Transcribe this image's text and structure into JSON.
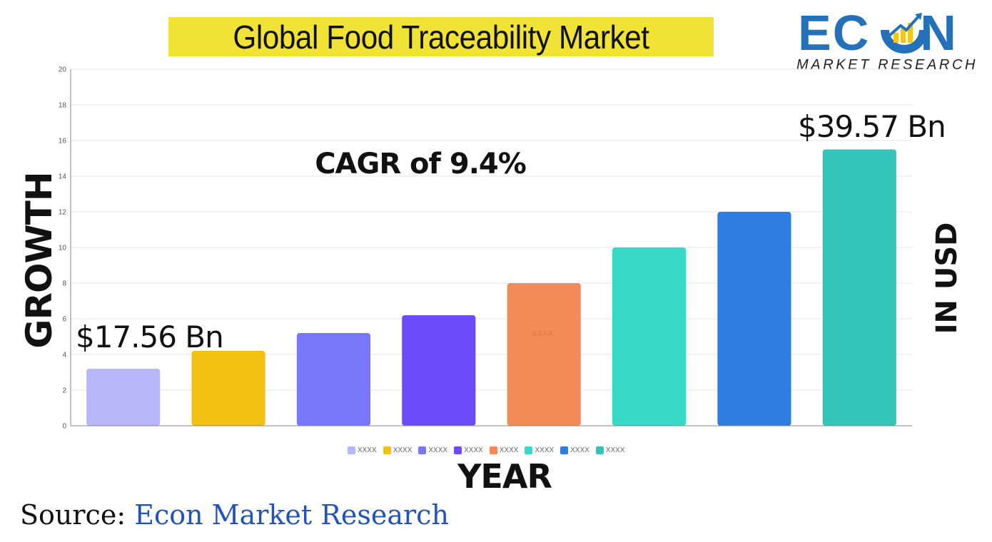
{
  "title": "Global Food Traceability Market",
  "logo": {
    "word_left": "EC",
    "word_right": "N",
    "subtitle": "MARKET RESEARCH",
    "brand_color": "#2471b9",
    "accent_color": "#f5c518"
  },
  "annotations": {
    "cagr": "CAGR of 9.4%",
    "start_value": "$17.56 Bn",
    "end_value": "$39.57 Bn"
  },
  "axis_titles": {
    "y_left": "GROWTH",
    "y_right": "IN USD",
    "x": "YEAR"
  },
  "source": {
    "label": "Source:",
    "name": "Econ Market Research"
  },
  "chart_data": {
    "type": "bar",
    "title": "Global Food Traceability Market",
    "xlabel": "YEAR",
    "ylabel": "GROWTH",
    "ylim": [
      0,
      20
    ],
    "yticks": [
      0,
      2,
      4,
      6,
      8,
      10,
      12,
      14,
      16,
      18,
      20
    ],
    "grid": true,
    "legend_position": "bottom",
    "categories": [
      "XXXX",
      "XXXX",
      "XXXX",
      "XXXX",
      "XXXX",
      "XXXX",
      "XXXX",
      "XXXX"
    ],
    "values": [
      3.2,
      4.2,
      5.2,
      6.2,
      8.0,
      10.0,
      12.0,
      15.5
    ],
    "colors": [
      "#b9b7fb",
      "#f2c112",
      "#7877f9",
      "#6c4bfb",
      "#f28b57",
      "#39d9c8",
      "#2f7de0",
      "#35c4ba"
    ],
    "bar_labels": [
      "",
      "",
      "",
      "",
      "XXXX",
      "",
      "",
      ""
    ]
  }
}
